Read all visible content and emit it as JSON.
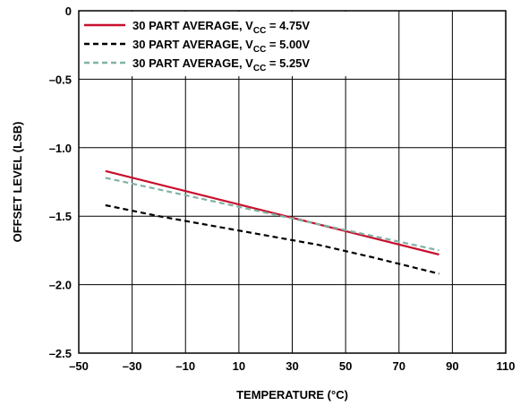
{
  "chart_data": {
    "type": "line",
    "title": "",
    "xlabel": "TEMPERATURE (°C)",
    "ylabel": "OFFSET LEVEL (LSB)",
    "xlim": [
      -50,
      110
    ],
    "ylim": [
      -2.5,
      0
    ],
    "xticks": [
      -50,
      -30,
      -10,
      10,
      30,
      50,
      70,
      90,
      110
    ],
    "xtick_labels": [
      "–50",
      "–30",
      "–10",
      "10",
      "30",
      "50",
      "70",
      "90",
      "110"
    ],
    "yticks": [
      0,
      -0.5,
      -1.0,
      -1.5,
      -2.0,
      -2.5
    ],
    "ytick_labels": [
      "0",
      "–0.5",
      "–1.0",
      "–1.5",
      "–2.0",
      "–2.5"
    ],
    "grid": true,
    "legend_position": "top-left",
    "series": [
      {
        "name": "30 PART AVERAGE, VCC = 4.75V",
        "legend_prefix": "30 PART AVERAGE, V",
        "legend_sub": "CC",
        "legend_suffix": " = 4.75V",
        "color": "#c8102e",
        "style": "solid",
        "x": [
          -40,
          85
        ],
        "y": [
          -1.17,
          -1.78
        ]
      },
      {
        "name": "30 PART AVERAGE, VCC = 5.00V",
        "legend_prefix": "30 PART AVERAGE, V",
        "legend_sub": "CC",
        "legend_suffix": " = 5.00V",
        "color": "#000000",
        "style": "dashed",
        "x": [
          -40,
          -20,
          0,
          20,
          40,
          60,
          85
        ],
        "y": [
          -1.42,
          -1.5,
          -1.57,
          -1.64,
          -1.71,
          -1.8,
          -1.92
        ]
      },
      {
        "name": "30 PART AVERAGE, VCC = 5.25V",
        "legend_prefix": "30 PART AVERAGE, V",
        "legend_sub": "CC",
        "legend_suffix": " = 5.25V",
        "color": "#7fb3a3",
        "style": "dashed",
        "x": [
          -40,
          85
        ],
        "y": [
          -1.22,
          -1.75
        ]
      }
    ]
  }
}
